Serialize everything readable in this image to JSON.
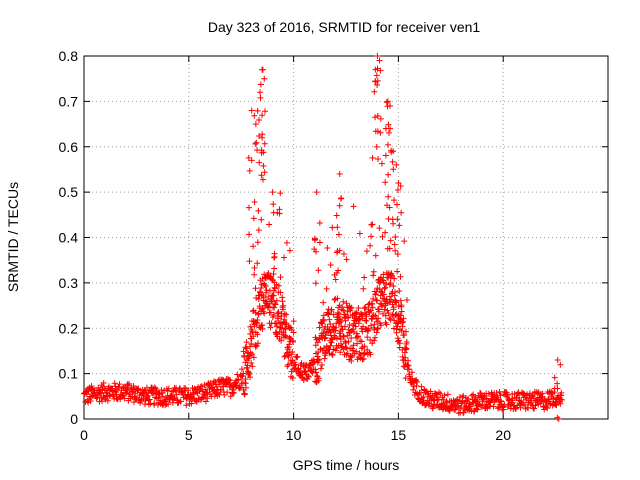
{
  "chart_data": {
    "type": "scatter",
    "title": "Day 323 of 2016, SRMTID for receiver ven1",
    "xlabel": "GPS time / hours",
    "ylabel": "SRMTID / TECUs",
    "xlim": [
      0,
      25
    ],
    "ylim": [
      0,
      0.8
    ],
    "grid": true,
    "marker": "+",
    "color": "#ff0000",
    "xticks": [
      0,
      5,
      10,
      15,
      20
    ],
    "xtick_labels": [
      "0",
      "5",
      "10",
      "15",
      "20"
    ],
    "yticks": [
      0,
      0.1,
      0.2,
      0.3,
      0.4,
      0.5,
      0.6,
      0.7,
      0.8
    ],
    "ytick_labels": [
      "0",
      "0.1",
      "0.2",
      "0.3",
      "0.4",
      "0.5",
      "0.6",
      "0.7",
      "0.8"
    ],
    "series": [
      {
        "name": "ven1",
        "profile": {
          "x": [
            0,
            1,
            2,
            3,
            4,
            5,
            6,
            6.5,
            7,
            7.5,
            7.8,
            8.0,
            8.2,
            8.4,
            8.6,
            8.8,
            9.0,
            9.3,
            9.6,
            10.0,
            10.3,
            10.6,
            10.8,
            11.0,
            11.3,
            11.6,
            12.0,
            12.2,
            12.5,
            12.8,
            13.0,
            13.3,
            13.6,
            13.8,
            14.0,
            14.3,
            14.6,
            14.9,
            15.2,
            15.5,
            15.8,
            16.2,
            16.6,
            17.0,
            18.0,
            19.0,
            20.0,
            21.0,
            22.0,
            22.5,
            22.8
          ],
          "y": [
            0.05,
            0.06,
            0.06,
            0.05,
            0.05,
            0.05,
            0.06,
            0.07,
            0.07,
            0.09,
            0.12,
            0.16,
            0.2,
            0.24,
            0.26,
            0.26,
            0.25,
            0.23,
            0.18,
            0.13,
            0.11,
            0.1,
            0.11,
            0.12,
            0.15,
            0.18,
            0.2,
            0.2,
            0.19,
            0.18,
            0.18,
            0.18,
            0.19,
            0.21,
            0.24,
            0.26,
            0.26,
            0.24,
            0.18,
            0.1,
            0.07,
            0.05,
            0.04,
            0.04,
            0.03,
            0.04,
            0.04,
            0.04,
            0.04,
            0.05,
            0.05
          ]
        },
        "peaks": [
          {
            "x": 8.0,
            "y": 0.68
          },
          {
            "x": 8.2,
            "y": 0.65
          },
          {
            "x": 8.4,
            "y": 0.72
          },
          {
            "x": 8.5,
            "y": 0.77
          },
          {
            "x": 8.6,
            "y": 0.75
          },
          {
            "x": 9.0,
            "y": 0.5
          },
          {
            "x": 11.1,
            "y": 0.5
          },
          {
            "x": 12.2,
            "y": 0.54
          },
          {
            "x": 12.2,
            "y": 0.47
          },
          {
            "x": 13.9,
            "y": 0.77
          },
          {
            "x": 14.0,
            "y": 0.8
          },
          {
            "x": 14.1,
            "y": 0.79
          },
          {
            "x": 14.5,
            "y": 0.7
          },
          {
            "x": 14.6,
            "y": 0.69
          },
          {
            "x": 14.6,
            "y": 0.64
          },
          {
            "x": 14.9,
            "y": 0.56
          },
          {
            "x": 15.0,
            "y": 0.52
          },
          {
            "x": 22.6,
            "y": 0.13
          }
        ]
      }
    ]
  }
}
